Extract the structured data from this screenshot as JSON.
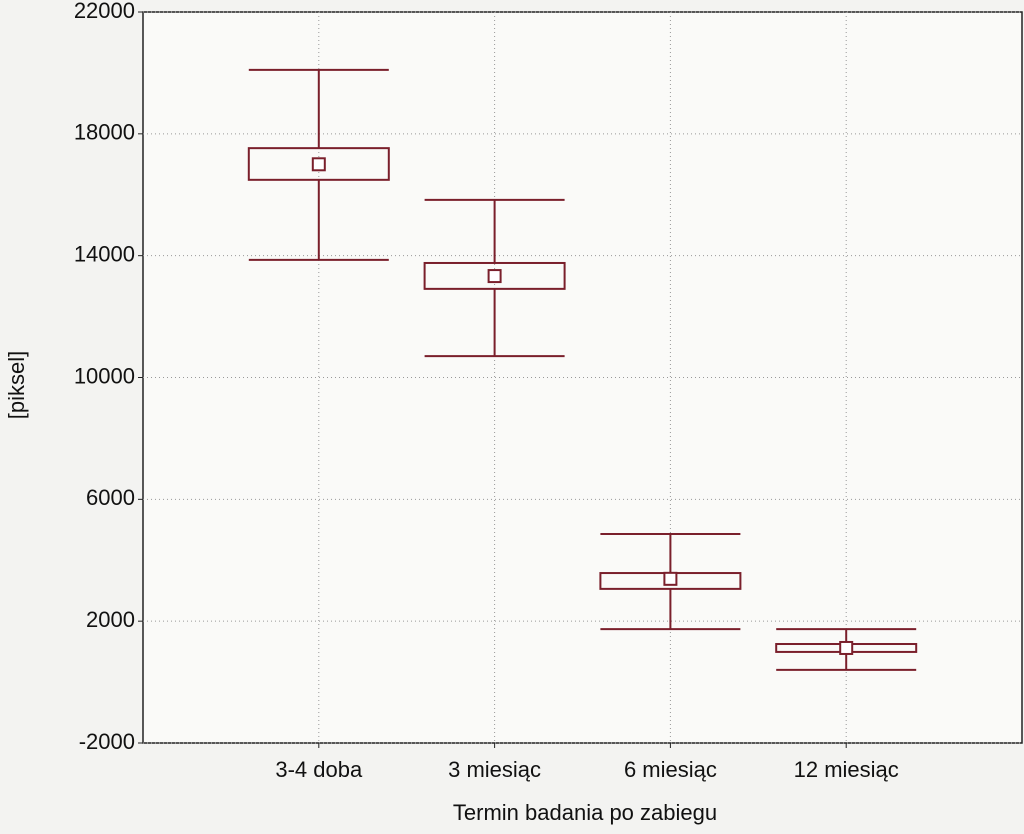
{
  "chart_data": {
    "type": "box",
    "x_label": "Termin badania po zabiegu",
    "y_label": "[piksel]",
    "categories": [
      "3-4 doba",
      "3 miesiąc",
      "6 miesiąc",
      "12 miesiąc"
    ],
    "color": "#7a1f2b",
    "mean": [
      17000,
      13330,
      3390,
      1120
    ],
    "box_low": [
      16490,
      12910,
      3060,
      990
    ],
    "box_high": [
      17530,
      13760,
      3580,
      1250
    ],
    "whisker_low": [
      13860,
      10700,
      1740,
      400
    ],
    "whisker_high": [
      20100,
      15830,
      4860,
      1740
    ],
    "ylim": [
      -2000,
      22000
    ],
    "yticks": [
      -2000,
      2000,
      6000,
      10000,
      14000,
      18000,
      22000
    ],
    "grid": true
  }
}
